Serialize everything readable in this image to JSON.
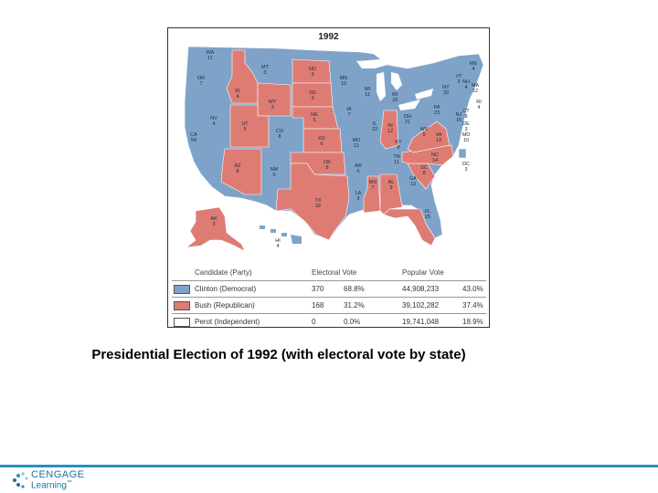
{
  "map": {
    "year": "1992",
    "colors": {
      "democrat": "#7fa3c8",
      "republican": "#de7c74",
      "independent": "#ffffff",
      "lakes": "#ffffff"
    },
    "states": [
      {
        "abbr": "WA",
        "ev": "11",
        "party": "D"
      },
      {
        "abbr": "OR",
        "ev": "7",
        "party": "D"
      },
      {
        "abbr": "CA",
        "ev": "54",
        "party": "D"
      },
      {
        "abbr": "NV",
        "ev": "4",
        "party": "D"
      },
      {
        "abbr": "ID",
        "ev": "4",
        "party": "R"
      },
      {
        "abbr": "MT",
        "ev": "3",
        "party": "D"
      },
      {
        "abbr": "WY",
        "ev": "3",
        "party": "R"
      },
      {
        "abbr": "UT",
        "ev": "5",
        "party": "R"
      },
      {
        "abbr": "AZ",
        "ev": "8",
        "party": "R"
      },
      {
        "abbr": "CO",
        "ev": "8",
        "party": "D"
      },
      {
        "abbr": "NM",
        "ev": "5",
        "party": "D"
      },
      {
        "abbr": "ND",
        "ev": "3",
        "party": "R"
      },
      {
        "abbr": "SD",
        "ev": "3",
        "party": "R"
      },
      {
        "abbr": "NE",
        "ev": "5",
        "party": "R"
      },
      {
        "abbr": "KS",
        "ev": "6",
        "party": "R"
      },
      {
        "abbr": "OK",
        "ev": "8",
        "party": "R"
      },
      {
        "abbr": "TX",
        "ev": "32",
        "party": "R"
      },
      {
        "abbr": "MN",
        "ev": "10",
        "party": "D"
      },
      {
        "abbr": "IA",
        "ev": "7",
        "party": "D"
      },
      {
        "abbr": "MO",
        "ev": "11",
        "party": "D"
      },
      {
        "abbr": "AR",
        "ev": "6",
        "party": "D"
      },
      {
        "abbr": "LA",
        "ev": "9",
        "party": "D"
      },
      {
        "abbr": "WI",
        "ev": "11",
        "party": "D"
      },
      {
        "abbr": "IL",
        "ev": "22",
        "party": "D"
      },
      {
        "abbr": "MI",
        "ev": "18",
        "party": "D"
      },
      {
        "abbr": "IN",
        "ev": "12",
        "party": "R"
      },
      {
        "abbr": "OH",
        "ev": "21",
        "party": "D"
      },
      {
        "abbr": "KY",
        "ev": "8",
        "party": "D"
      },
      {
        "abbr": "TN",
        "ev": "11",
        "party": "D"
      },
      {
        "abbr": "MS",
        "ev": "7",
        "party": "R"
      },
      {
        "abbr": "AL",
        "ev": "9",
        "party": "R"
      },
      {
        "abbr": "GA",
        "ev": "13",
        "party": "D"
      },
      {
        "abbr": "FL",
        "ev": "25",
        "party": "R"
      },
      {
        "abbr": "SC",
        "ev": "8",
        "party": "R"
      },
      {
        "abbr": "NC",
        "ev": "14",
        "party": "R"
      },
      {
        "abbr": "VA",
        "ev": "13",
        "party": "R"
      },
      {
        "abbr": "WV",
        "ev": "5",
        "party": "D"
      },
      {
        "abbr": "PA",
        "ev": "23",
        "party": "D"
      },
      {
        "abbr": "NY",
        "ev": "33",
        "party": "D"
      },
      {
        "abbr": "ME",
        "ev": "4",
        "party": "D"
      },
      {
        "abbr": "VT",
        "ev": "3",
        "party": "D"
      },
      {
        "abbr": "NH",
        "ev": "4",
        "party": "D"
      },
      {
        "abbr": "MA",
        "ev": "12",
        "party": "D"
      },
      {
        "abbr": "RI",
        "ev": "4",
        "party": "D"
      },
      {
        "abbr": "CT",
        "ev": "8",
        "party": "D"
      },
      {
        "abbr": "NJ",
        "ev": "15",
        "party": "D"
      },
      {
        "abbr": "DE",
        "ev": "3",
        "party": "D"
      },
      {
        "abbr": "MD",
        "ev": "10",
        "party": "D"
      },
      {
        "abbr": "DC",
        "ev": "3",
        "party": "D"
      },
      {
        "abbr": "AK",
        "ev": "3",
        "party": "R"
      },
      {
        "abbr": "HI",
        "ev": "4",
        "party": "D"
      }
    ]
  },
  "legend": {
    "header": {
      "candidate": "Candidate (Party)",
      "electoral": "Electoral Vote",
      "popular": "Popular Vote"
    },
    "rows": [
      {
        "candidate": "Clinton (Democrat)",
        "ev": "370",
        "ev_pct": "68.8%",
        "pv": "44,908,233",
        "pv_pct": "43.0%",
        "color": "#7fa3c8"
      },
      {
        "candidate": "Bush (Republican)",
        "ev": "168",
        "ev_pct": "31.2%",
        "pv": "39,102,282",
        "pv_pct": "37.4%",
        "color": "#de7c74"
      },
      {
        "candidate": "Perot (Independent)",
        "ev": "0",
        "ev_pct": "0.0%",
        "pv": "19,741,048",
        "pv_pct": "18.9%",
        "color": "#ffffff"
      }
    ]
  },
  "caption": "Presidential Election of 1992 (with electoral vote by state)",
  "footer": {
    "brand_line1": "CENGAGE",
    "brand_line2": "Learning",
    "brand_mark": "™",
    "accent": "#2a8ec0"
  }
}
